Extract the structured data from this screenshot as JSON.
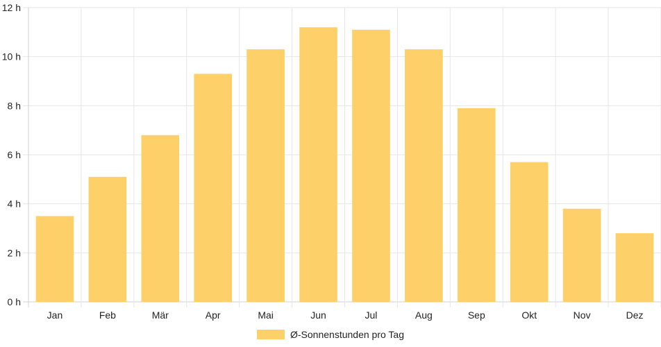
{
  "chart_data": {
    "type": "bar",
    "categories": [
      "Jan",
      "Feb",
      "Mär",
      "Apr",
      "Mai",
      "Jun",
      "Jul",
      "Aug",
      "Sep",
      "Okt",
      "Nov",
      "Dez"
    ],
    "series": [
      {
        "name": "Ø-Sonnenstunden pro Tag",
        "values": [
          3.5,
          5.1,
          6.8,
          9.3,
          10.3,
          11.2,
          11.1,
          10.3,
          7.9,
          5.7,
          3.8,
          2.8
        ],
        "color": "#fed06a"
      }
    ],
    "y_ticks": [
      "0 h",
      "2 h",
      "4 h",
      "6 h",
      "8 h",
      "10 h",
      "12 h"
    ],
    "ylim": [
      0,
      12
    ],
    "grid": true,
    "legend_position": "bottom"
  }
}
